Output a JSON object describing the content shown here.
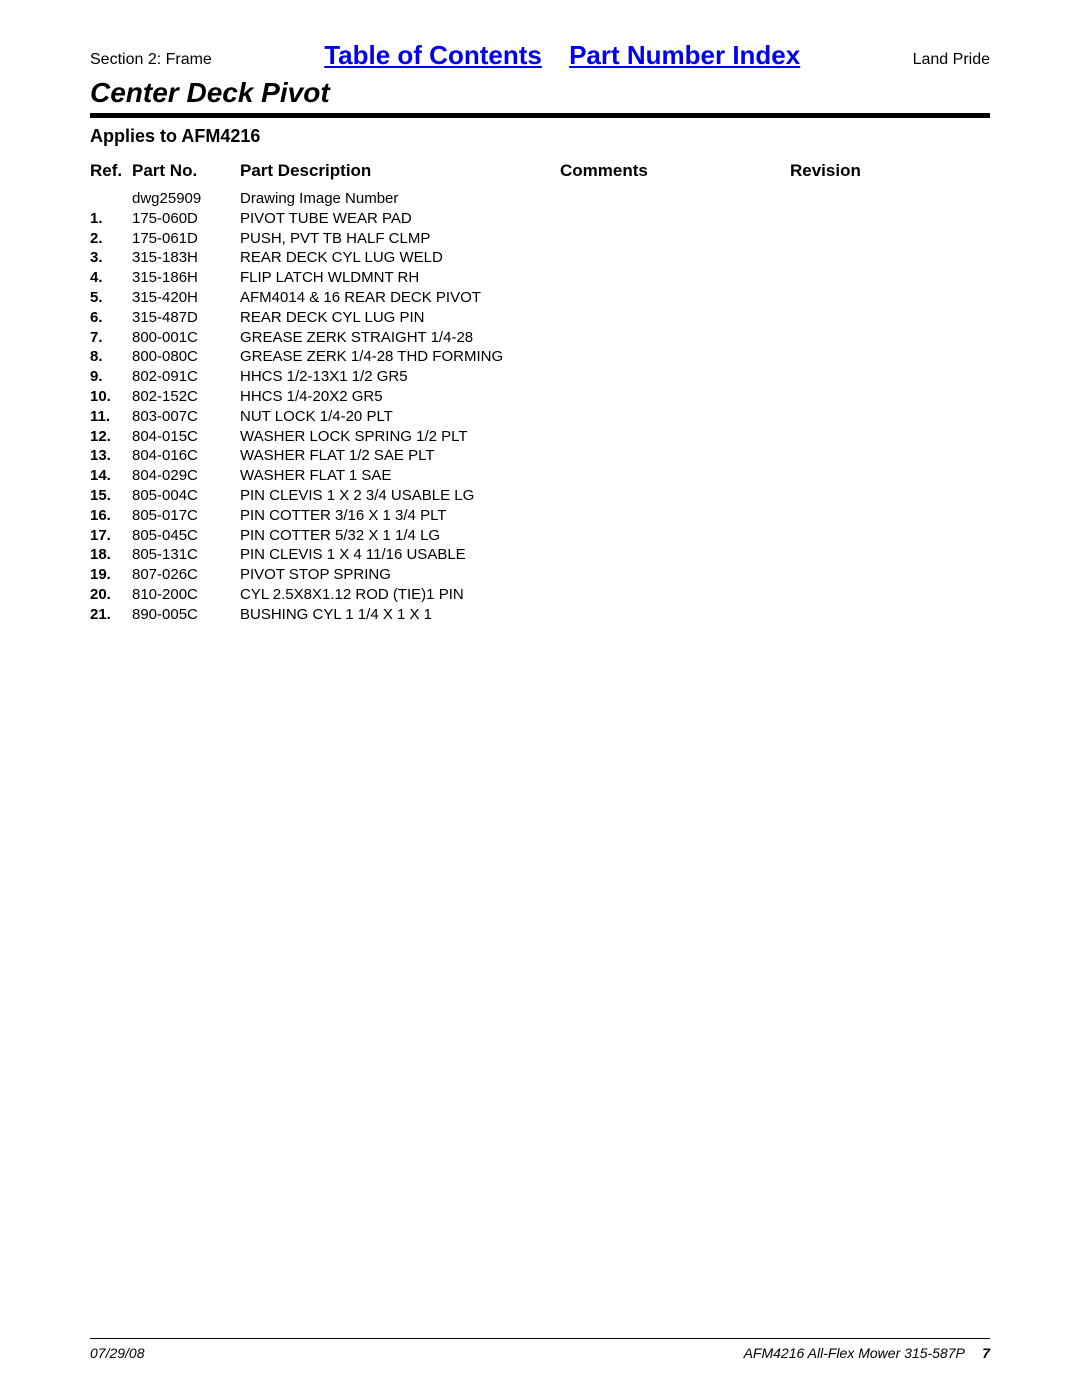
{
  "header": {
    "section_label": "Section 2: Frame",
    "toc_link": "Table of Contents",
    "pni_link": "Part Number Index",
    "brand": "Land Pride",
    "title": "Center Deck Pivot",
    "applies": "Applies to AFM4216"
  },
  "columns": {
    "ref": "Ref.",
    "part": "Part No.",
    "desc": "Part Description",
    "comm": "Comments",
    "rev": "Revision"
  },
  "rows": [
    {
      "ref": "",
      "part": "dwg25909",
      "desc": "Drawing Image Number"
    },
    {
      "ref": "1.",
      "part": "175-060D",
      "desc": "PIVOT TUBE WEAR PAD"
    },
    {
      "ref": "2.",
      "part": "175-061D",
      "desc": "PUSH, PVT TB HALF CLMP"
    },
    {
      "ref": "3.",
      "part": "315-183H",
      "desc": "REAR DECK CYL LUG WELD"
    },
    {
      "ref": "4.",
      "part": "315-186H",
      "desc": "FLIP LATCH WLDMNT RH"
    },
    {
      "ref": "5.",
      "part": "315-420H",
      "desc": "AFM4014 & 16 REAR DECK PIVOT"
    },
    {
      "ref": "6.",
      "part": "315-487D",
      "desc": "REAR DECK CYL LUG PIN"
    },
    {
      "ref": "7.",
      "part": "800-001C",
      "desc": "GREASE ZERK STRAIGHT 1/4-28"
    },
    {
      "ref": "8.",
      "part": "800-080C",
      "desc": "GREASE ZERK 1/4-28 THD FORMING"
    },
    {
      "ref": "9.",
      "part": "802-091C",
      "desc": "HHCS 1/2-13X1 1/2 GR5"
    },
    {
      "ref": "10.",
      "part": "802-152C",
      "desc": "HHCS 1/4-20X2 GR5"
    },
    {
      "ref": "11.",
      "part": "803-007C",
      "desc": "NUT LOCK 1/4-20 PLT"
    },
    {
      "ref": "12.",
      "part": "804-015C",
      "desc": "WASHER LOCK SPRING 1/2 PLT"
    },
    {
      "ref": "13.",
      "part": "804-016C",
      "desc": "WASHER FLAT 1/2 SAE PLT"
    },
    {
      "ref": "14.",
      "part": "804-029C",
      "desc": "WASHER FLAT 1 SAE"
    },
    {
      "ref": "15.",
      "part": "805-004C",
      "desc": "PIN CLEVIS 1 X 2 3/4 USABLE LG"
    },
    {
      "ref": "16.",
      "part": "805-017C",
      "desc": "PIN COTTER 3/16 X 1 3/4 PLT"
    },
    {
      "ref": "17.",
      "part": "805-045C",
      "desc": "PIN COTTER 5/32 X 1 1/4 LG"
    },
    {
      "ref": "18.",
      "part": "805-131C",
      "desc": "PIN CLEVIS 1 X 4 11/16 USABLE"
    },
    {
      "ref": "19.",
      "part": "807-026C",
      "desc": "PIVOT STOP SPRING"
    },
    {
      "ref": "20.",
      "part": "810-200C",
      "desc": "CYL 2.5X8X1.12 ROD (TIE)1 PIN"
    },
    {
      "ref": "21.",
      "part": "890-005C",
      "desc": "BUSHING CYL 1 1/4 X 1 X 1"
    }
  ],
  "footer": {
    "date": "07/29/08",
    "doc": "AFM4216 All-Flex Mower 315-587P",
    "page": "7"
  },
  "style": {
    "link_color": "#0000ee",
    "rule_color": "#000000",
    "text_color": "#000000",
    "background": "#ffffff"
  }
}
